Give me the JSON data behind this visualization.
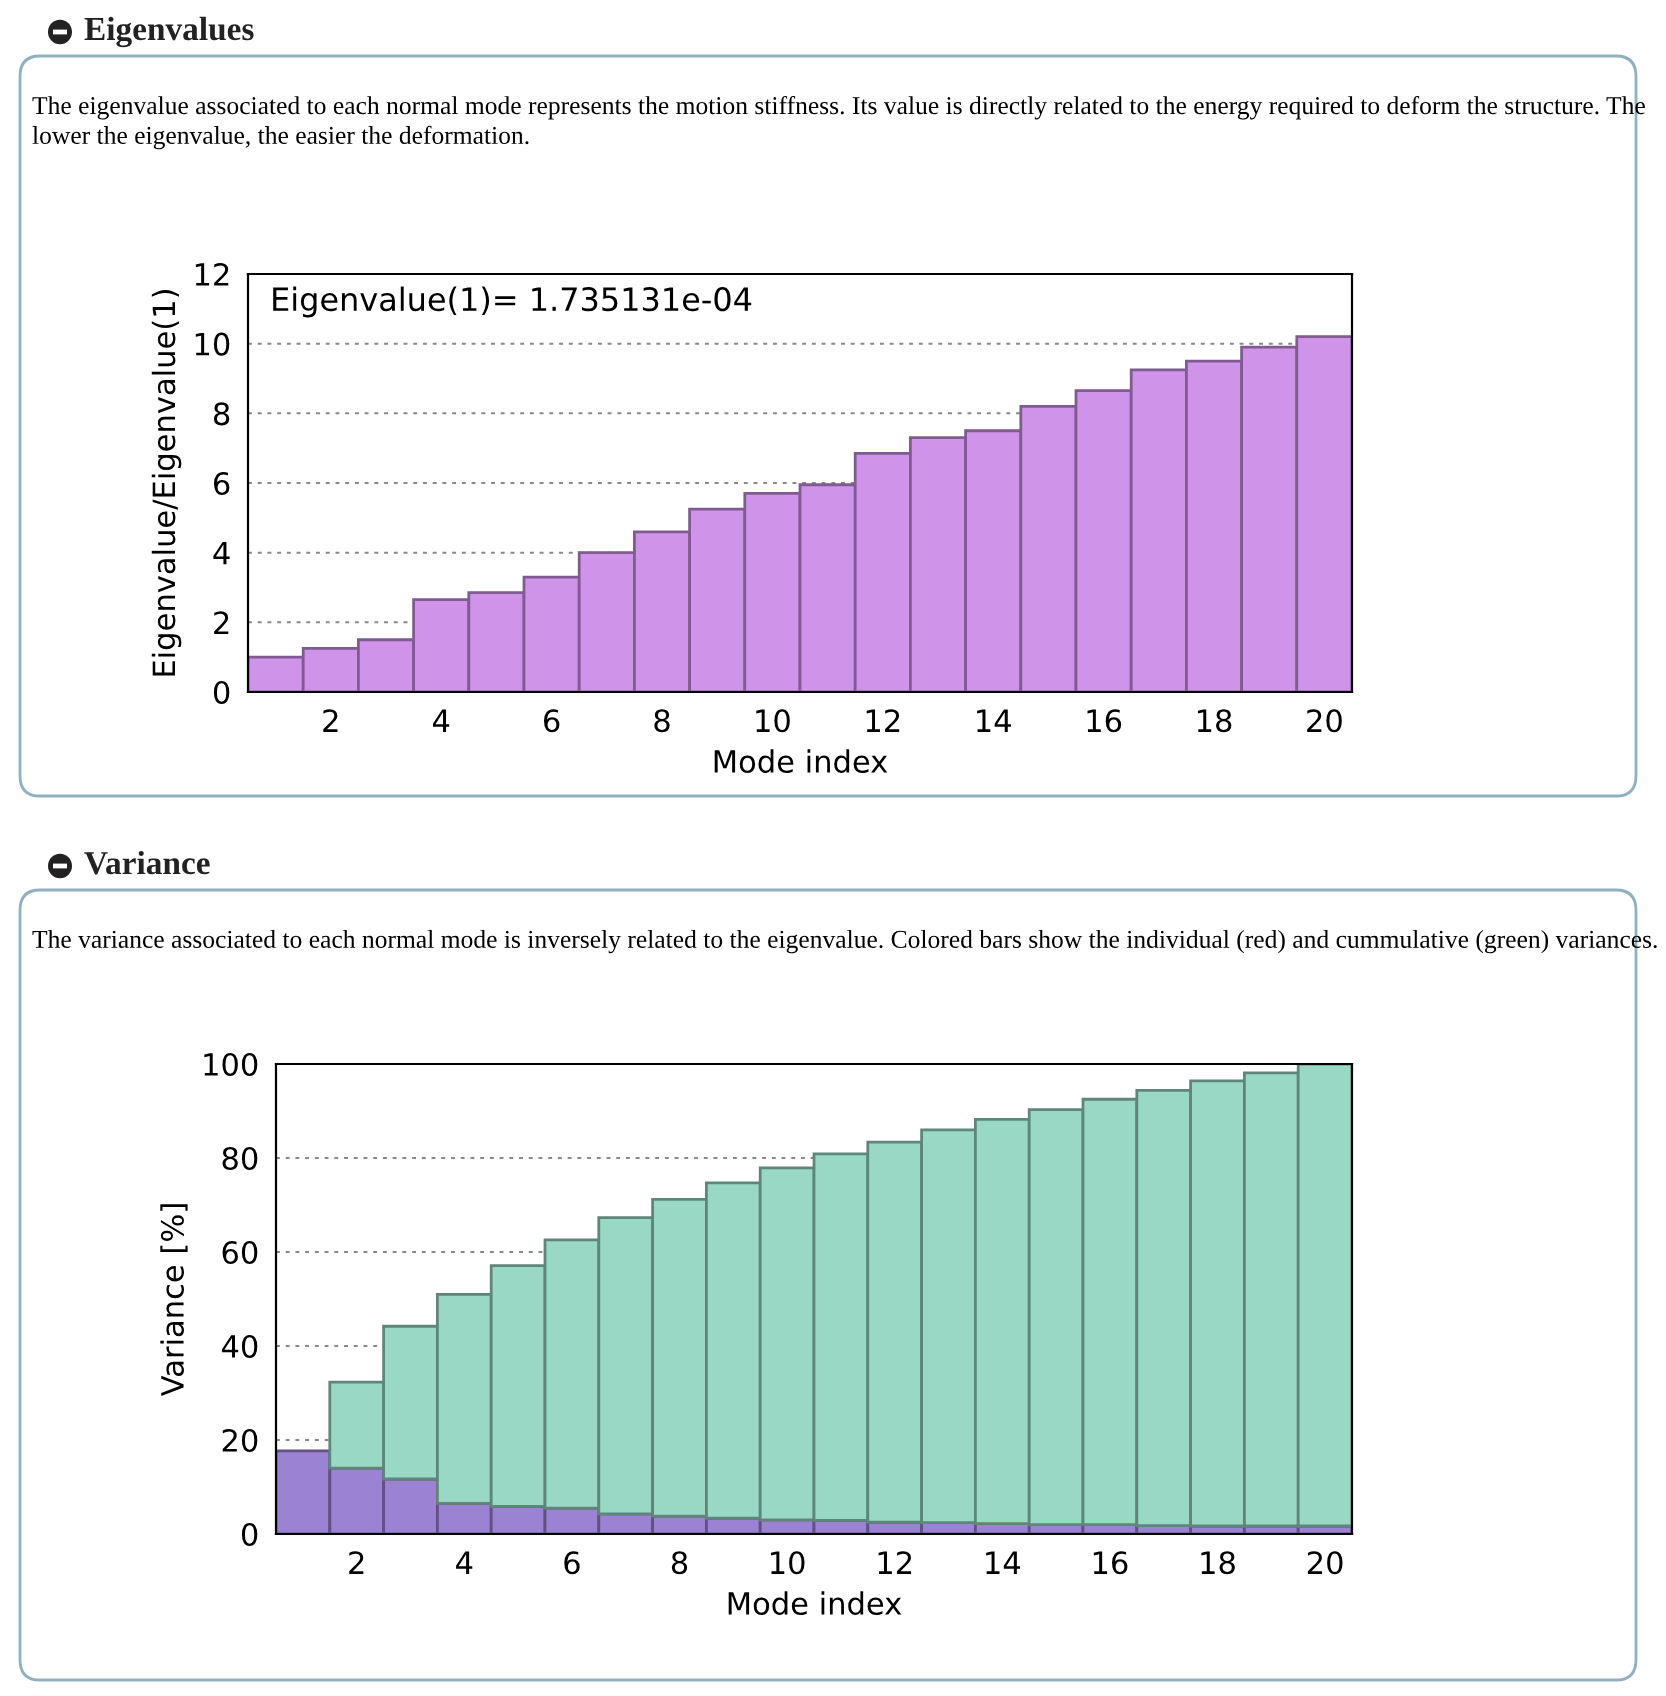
{
  "chart_data": [
    {
      "type": "bar",
      "title": "Eigenvalues",
      "subtitle": "The eigenvalue associated to each normal mode represents the motion stiffness. Its value is directly related to the energy required to deform the structure. The lower the eigenvalue, the easier the deformation.",
      "xlabel": "Mode index",
      "ylabel": "Eigenvalue/Eigenvalue(1)",
      "annotations": [
        "Eigenvalue(1)= 1.735131e-04"
      ],
      "x": [
        1,
        2,
        3,
        4,
        5,
        6,
        7,
        8,
        9,
        10,
        11,
        12,
        13,
        14,
        15,
        16,
        17,
        18,
        19,
        20
      ],
      "series": [
        {
          "color": "#cf93ea",
          "values": [
            1.0,
            1.25,
            1.5,
            2.65,
            2.85,
            3.3,
            4.0,
            4.6,
            5.25,
            5.7,
            5.95,
            6.85,
            7.3,
            7.5,
            8.2,
            8.65,
            9.25,
            9.5,
            9.9,
            10.2
          ]
        }
      ],
      "xlim": [
        0.5,
        20.5
      ],
      "xticks": [
        2,
        4,
        6,
        8,
        10,
        12,
        14,
        16,
        18,
        20
      ],
      "ylim": [
        0,
        12
      ],
      "yticks": [
        0,
        2,
        4,
        6,
        8,
        10,
        12
      ],
      "grid": "y",
      "legend": false
    },
    {
      "type": "bar",
      "title": "Variance",
      "subtitle": "The variance associated to each normal mode is inversely related to the eigenvalue. Colored bars show the individual (red) and cummulative (green) variances.",
      "xlabel": "Mode index",
      "ylabel": "Variance [%]",
      "x": [
        1,
        2,
        3,
        4,
        5,
        6,
        7,
        8,
        9,
        10,
        11,
        12,
        13,
        14,
        15,
        16,
        17,
        18,
        19,
        20
      ],
      "stacked": true,
      "series": [
        {
          "color": "#9b82d2",
          "values": [
            17.7,
            14.0,
            11.7,
            6.5,
            5.9,
            5.5,
            4.3,
            3.8,
            3.4,
            3.0,
            2.9,
            2.5,
            2.4,
            2.2,
            2.0,
            2.0,
            1.8,
            1.7,
            1.7,
            1.7
          ]
        },
        {
          "color": "#98d8c5",
          "values": [
            null,
            18.3,
            32.5,
            44.5,
            51.2,
            57.1,
            63.0,
            67.4,
            71.3,
            74.9,
            78.0,
            80.9,
            83.6,
            86.0,
            88.3,
            90.5,
            92.6,
            94.7,
            96.4,
            98.3
          ]
        }
      ],
      "xlim": [
        0.5,
        20.5
      ],
      "xticks": [
        2,
        4,
        6,
        8,
        10,
        12,
        14,
        16,
        18,
        20
      ],
      "ylim": [
        0,
        100
      ],
      "yticks": [
        0,
        20,
        40,
        60,
        80,
        100
      ],
      "grid": "y",
      "legend": false
    }
  ]
}
